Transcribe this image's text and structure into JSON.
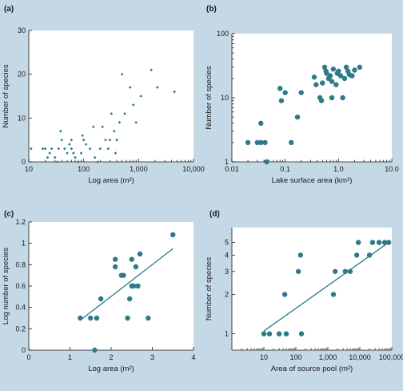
{
  "colors": {
    "background": "#c4d8e6",
    "plot_background": "#ffffff",
    "marker": "#2e7a88",
    "fit_line": "#2e7a88",
    "axis": "#1a1a1a"
  },
  "chart_data": [
    {
      "id": "a",
      "panel_label": "(a)",
      "type": "scatter",
      "marker": "small-diamond",
      "x_scale": "log",
      "y_scale": "linear",
      "xlim": [
        10,
        10000
      ],
      "ylim": [
        0,
        30
      ],
      "xlabel": "Log area (m²)",
      "ylabel": "Number of species",
      "xticks": [
        10,
        100,
        1000,
        10000
      ],
      "xtick_labels": [
        "10",
        "100",
        "1,000",
        "10,000"
      ],
      "yticks": [
        0,
        10,
        20,
        30
      ],
      "ytick_labels": [
        "0",
        "10",
        "20",
        "30"
      ],
      "points": [
        [
          11,
          3
        ],
        [
          18,
          3
        ],
        [
          20,
          3
        ],
        [
          22,
          1
        ],
        [
          24,
          2
        ],
        [
          26,
          3
        ],
        [
          30,
          1
        ],
        [
          33,
          0
        ],
        [
          35,
          3
        ],
        [
          38,
          7
        ],
        [
          40,
          5
        ],
        [
          45,
          3
        ],
        [
          50,
          2
        ],
        [
          55,
          4
        ],
        [
          60,
          5
        ],
        [
          60,
          3
        ],
        [
          65,
          2
        ],
        [
          70,
          1
        ],
        [
          80,
          0
        ],
        [
          90,
          2
        ],
        [
          95,
          6
        ],
        [
          100,
          5
        ],
        [
          110,
          4
        ],
        [
          130,
          3
        ],
        [
          150,
          8
        ],
        [
          160,
          1
        ],
        [
          180,
          0
        ],
        [
          200,
          3
        ],
        [
          220,
          8
        ],
        [
          250,
          5
        ],
        [
          280,
          3
        ],
        [
          300,
          5
        ],
        [
          320,
          11
        ],
        [
          360,
          7
        ],
        [
          380,
          2
        ],
        [
          400,
          5
        ],
        [
          450,
          9
        ],
        [
          500,
          20
        ],
        [
          560,
          11
        ],
        [
          700,
          17
        ],
        [
          800,
          13
        ],
        [
          900,
          9
        ],
        [
          1100,
          15
        ],
        [
          1700,
          21
        ],
        [
          2200,
          17
        ],
        [
          4500,
          16
        ]
      ]
    },
    {
      "id": "b",
      "panel_label": "(b)",
      "type": "scatter",
      "marker": "large-dot",
      "x_scale": "log",
      "y_scale": "log",
      "xlim": [
        0.01,
        10
      ],
      "ylim": [
        1,
        100
      ],
      "xlabel": "Lake surface area (km²)",
      "ylabel": "Number of species",
      "xticks": [
        0.01,
        0.1,
        1,
        10
      ],
      "xtick_labels": [
        "0.01",
        "0.1",
        "1.0",
        "10.0"
      ],
      "yticks": [
        1,
        10,
        100
      ],
      "ytick_labels": [
        "1",
        "10",
        "100"
      ],
      "points": [
        [
          0.02,
          2
        ],
        [
          0.03,
          2
        ],
        [
          0.035,
          4
        ],
        [
          0.035,
          2
        ],
        [
          0.042,
          2
        ],
        [
          0.045,
          1
        ],
        [
          0.08,
          14
        ],
        [
          0.085,
          9
        ],
        [
          0.1,
          12
        ],
        [
          0.13,
          2
        ],
        [
          0.17,
          5
        ],
        [
          0.2,
          12
        ],
        [
          0.35,
          21
        ],
        [
          0.38,
          16
        ],
        [
          0.45,
          10
        ],
        [
          0.48,
          9
        ],
        [
          0.5,
          17
        ],
        [
          0.55,
          30
        ],
        [
          0.58,
          26
        ],
        [
          0.6,
          24
        ],
        [
          0.65,
          20
        ],
        [
          0.7,
          22
        ],
        [
          0.75,
          18
        ],
        [
          0.75,
          10
        ],
        [
          0.8,
          28
        ],
        [
          0.9,
          16
        ],
        [
          0.95,
          24
        ],
        [
          1.0,
          26
        ],
        [
          1.1,
          22
        ],
        [
          1.2,
          10
        ],
        [
          1.3,
          20
        ],
        [
          1.4,
          30
        ],
        [
          1.5,
          26
        ],
        [
          1.6,
          23
        ],
        [
          1.8,
          22
        ],
        [
          2.0,
          27
        ],
        [
          2.5,
          30
        ]
      ]
    },
    {
      "id": "c",
      "panel_label": "(c)",
      "type": "scatter",
      "marker": "large-dot",
      "x_scale": "linear",
      "y_scale": "linear",
      "xlim": [
        0,
        4
      ],
      "ylim": [
        0,
        1.2
      ],
      "xlabel": "Log area (m²)",
      "ylabel": "Log number of species",
      "xticks": [
        0,
        1,
        2,
        3,
        4
      ],
      "xtick_labels": [
        "0",
        "1",
        "2",
        "3",
        "4"
      ],
      "yticks": [
        0,
        0.2,
        0.4,
        0.6,
        0.8,
        1.0,
        1.2
      ],
      "ytick_labels": [
        "0",
        "0.2",
        "0.4",
        "0.6",
        "0.8",
        "1",
        "1.2"
      ],
      "points": [
        [
          1.25,
          0.3
        ],
        [
          1.5,
          0.3
        ],
        [
          1.6,
          0.0
        ],
        [
          1.65,
          0.3
        ],
        [
          1.75,
          0.48
        ],
        [
          2.1,
          0.85
        ],
        [
          2.1,
          0.78
        ],
        [
          2.25,
          0.7
        ],
        [
          2.3,
          0.7
        ],
        [
          2.4,
          0.3
        ],
        [
          2.45,
          0.48
        ],
        [
          2.5,
          0.6
        ],
        [
          2.5,
          0.85
        ],
        [
          2.55,
          0.6
        ],
        [
          2.6,
          0.78
        ],
        [
          2.65,
          0.6
        ],
        [
          2.7,
          0.9
        ],
        [
          2.9,
          0.3
        ],
        [
          3.5,
          1.08
        ]
      ],
      "fit_line": [
        [
          1.25,
          0.28
        ],
        [
          3.5,
          0.95
        ]
      ]
    },
    {
      "id": "d",
      "panel_label": "(d)",
      "type": "scatter",
      "marker": "large-dot",
      "x_scale": "log",
      "y_scale": "log",
      "xlim": [
        1,
        100000
      ],
      "ylim": [
        0.75,
        6.5
      ],
      "xlabel": "Area of source pool (m²)",
      "ylabel": "Number of species",
      "xticks": [
        10,
        100,
        1000,
        10000,
        100000
      ],
      "xtick_labels": [
        "10",
        "100",
        "1,000",
        "10,000",
        "100,000"
      ],
      "yticks": [
        1,
        2,
        3,
        4,
        5
      ],
      "ytick_labels": [
        "1",
        "2",
        "3",
        "4",
        "5"
      ],
      "points": [
        [
          10,
          1
        ],
        [
          15,
          1
        ],
        [
          30,
          1
        ],
        [
          45,
          2
        ],
        [
          50,
          1
        ],
        [
          120,
          3
        ],
        [
          140,
          4
        ],
        [
          150,
          1
        ],
        [
          1500,
          2
        ],
        [
          1700,
          3
        ],
        [
          3500,
          3
        ],
        [
          5000,
          3
        ],
        [
          8000,
          4
        ],
        [
          9000,
          5
        ],
        [
          20000,
          4
        ],
        [
          25000,
          5
        ],
        [
          40000,
          5
        ],
        [
          60000,
          5
        ],
        [
          80000,
          5
        ]
      ],
      "fit_line": [
        [
          10,
          1.05
        ],
        [
          80000,
          5.0
        ]
      ]
    }
  ]
}
